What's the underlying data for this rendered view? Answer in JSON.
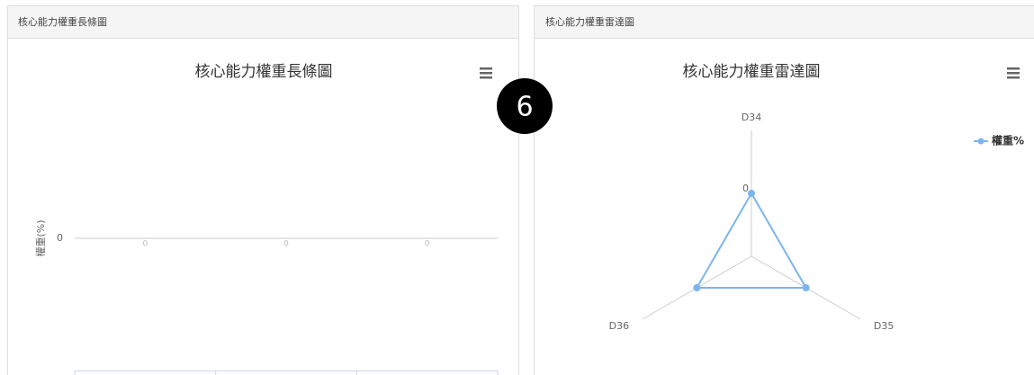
{
  "panels": [
    {
      "header": "核心能力權重長條圖",
      "chart": {
        "type": "bar",
        "title": "核心能力權重長條圖",
        "y_label": "權重(%)",
        "categories": [
          null,
          null,
          null
        ],
        "values": [
          0,
          0,
          0
        ],
        "color": "#7cb5ec",
        "ylim": [
          -1,
          1
        ],
        "yticks": [
          0
        ],
        "grid": true
      }
    },
    {
      "header": "核心能力權重雷達圖",
      "chart": {
        "type": "radar",
        "title": "核心能力權重雷達圖",
        "categories": [
          "D34",
          "D35",
          "D36"
        ],
        "series": [
          {
            "name": "權重%",
            "color": "#7cb5ec",
            "values": [
              0,
              0,
              0
            ]
          }
        ],
        "ylim": [
          -1,
          1
        ],
        "yticks": [
          0
        ],
        "legend": "top-right"
      }
    }
  ],
  "badge": "6"
}
